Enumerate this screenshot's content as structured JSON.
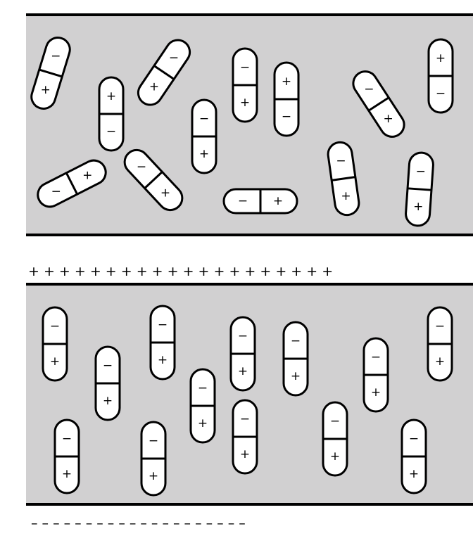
{
  "colors": {
    "dielectric_fill": "#d1d0d1",
    "plate": "#000000",
    "molecule_fill": "#ffffff",
    "molecule_outline": "#000000"
  },
  "symbols": {
    "positive": "+",
    "negative": "−"
  },
  "upper_plate_charges": "+  +  +  +  +  +  +  +  +  +  +  +  +  +  +  +  +  +  +  +",
  "lower_plate_charges": "–  –  –  –  –  –  –  –  –  –  –  –  –  –  –  –  –  –  –  –"
}
